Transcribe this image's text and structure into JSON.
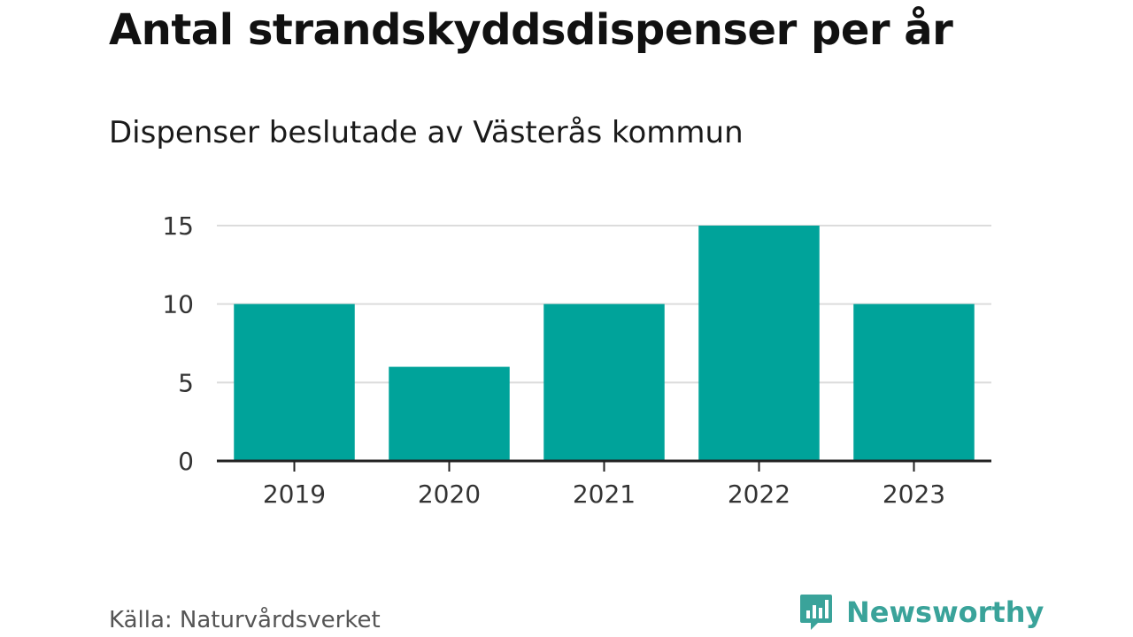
{
  "chart_data": {
    "type": "bar",
    "title": "Antal strandskyddsdispenser per år",
    "subtitle": "Dispenser beslutade av Västerås kommun",
    "categories": [
      "2019",
      "2020",
      "2021",
      "2022",
      "2023"
    ],
    "values": [
      10,
      6,
      10,
      15,
      10
    ],
    "ylim": [
      0,
      15
    ],
    "yticks": [
      "0",
      "5",
      "10",
      "15"
    ],
    "xlabel": "",
    "ylabel": "",
    "grid": true,
    "bar_color": "#00a39a"
  },
  "footer": {
    "source": "Källa: Naturvårdsverket",
    "brand": "Newsworthy",
    "brand_color": "#3aa39a",
    "brand_icon": "newsworthy-logo-icon"
  }
}
